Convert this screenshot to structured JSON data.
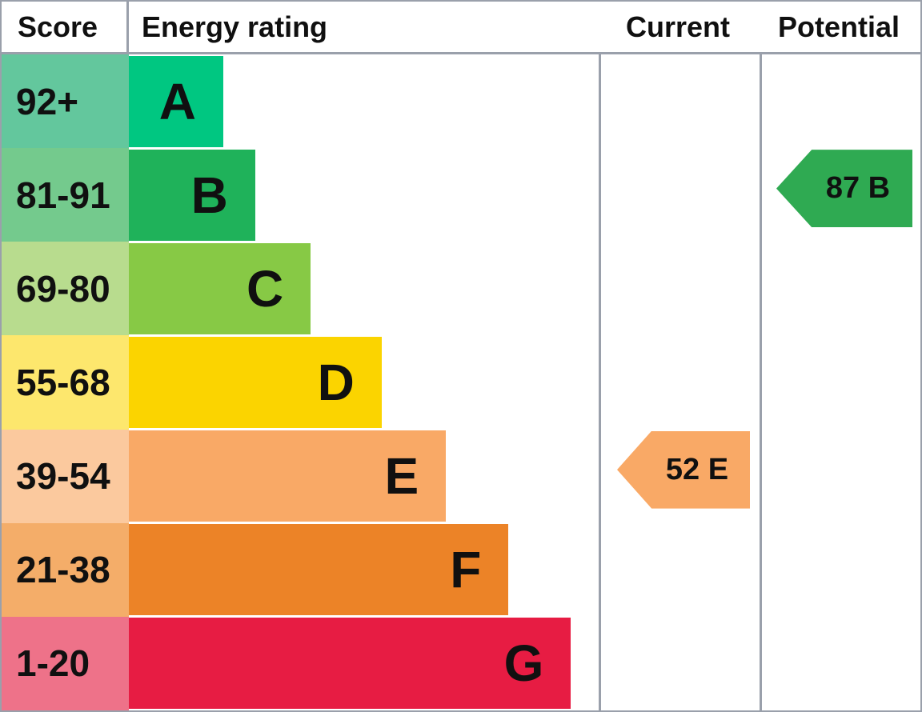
{
  "chart_data": {
    "type": "bar",
    "variant": "epc-energy-rating",
    "orientation": "horizontal",
    "columns": {
      "score": "Score",
      "energy_rating": "Energy rating",
      "current": "Current",
      "potential": "Potential"
    },
    "bands": [
      {
        "letter": "A",
        "score": "92+",
        "bar_color": "#00c781",
        "cell_color": "#63c79d",
        "bar_width_pct": 20.1
      },
      {
        "letter": "B",
        "score": "81-91",
        "bar_color": "#1fb25a",
        "cell_color": "#74ca8d",
        "bar_width_pct": 26.9
      },
      {
        "letter": "C",
        "score": "69-80",
        "bar_color": "#87c945",
        "cell_color": "#b8dc8e",
        "bar_width_pct": 38.7
      },
      {
        "letter": "D",
        "score": "55-68",
        "bar_color": "#fbd400",
        "cell_color": "#fde76d",
        "bar_width_pct": 53.8
      },
      {
        "letter": "E",
        "score": "39-54",
        "bar_color": "#f9a966",
        "cell_color": "#fbc99e",
        "bar_width_pct": 67.5
      },
      {
        "letter": "F",
        "score": "21-38",
        "bar_color": "#ec8327",
        "cell_color": "#f4ad69",
        "bar_width_pct": 80.8
      },
      {
        "letter": "G",
        "score": "1-20",
        "bar_color": "#e71c43",
        "cell_color": "#ee7289",
        "bar_width_pct": 94.1
      }
    ],
    "current": {
      "label": "52 E",
      "value": 52,
      "band": "E",
      "color": "#f9a966",
      "row_index": 4
    },
    "potential": {
      "label": "87 B",
      "value": 87,
      "band": "B",
      "color": "#2faa52",
      "row_index": 1
    },
    "colors": {
      "border": "#9aa0ab",
      "text": "#101010",
      "background": "#ffffff"
    }
  }
}
